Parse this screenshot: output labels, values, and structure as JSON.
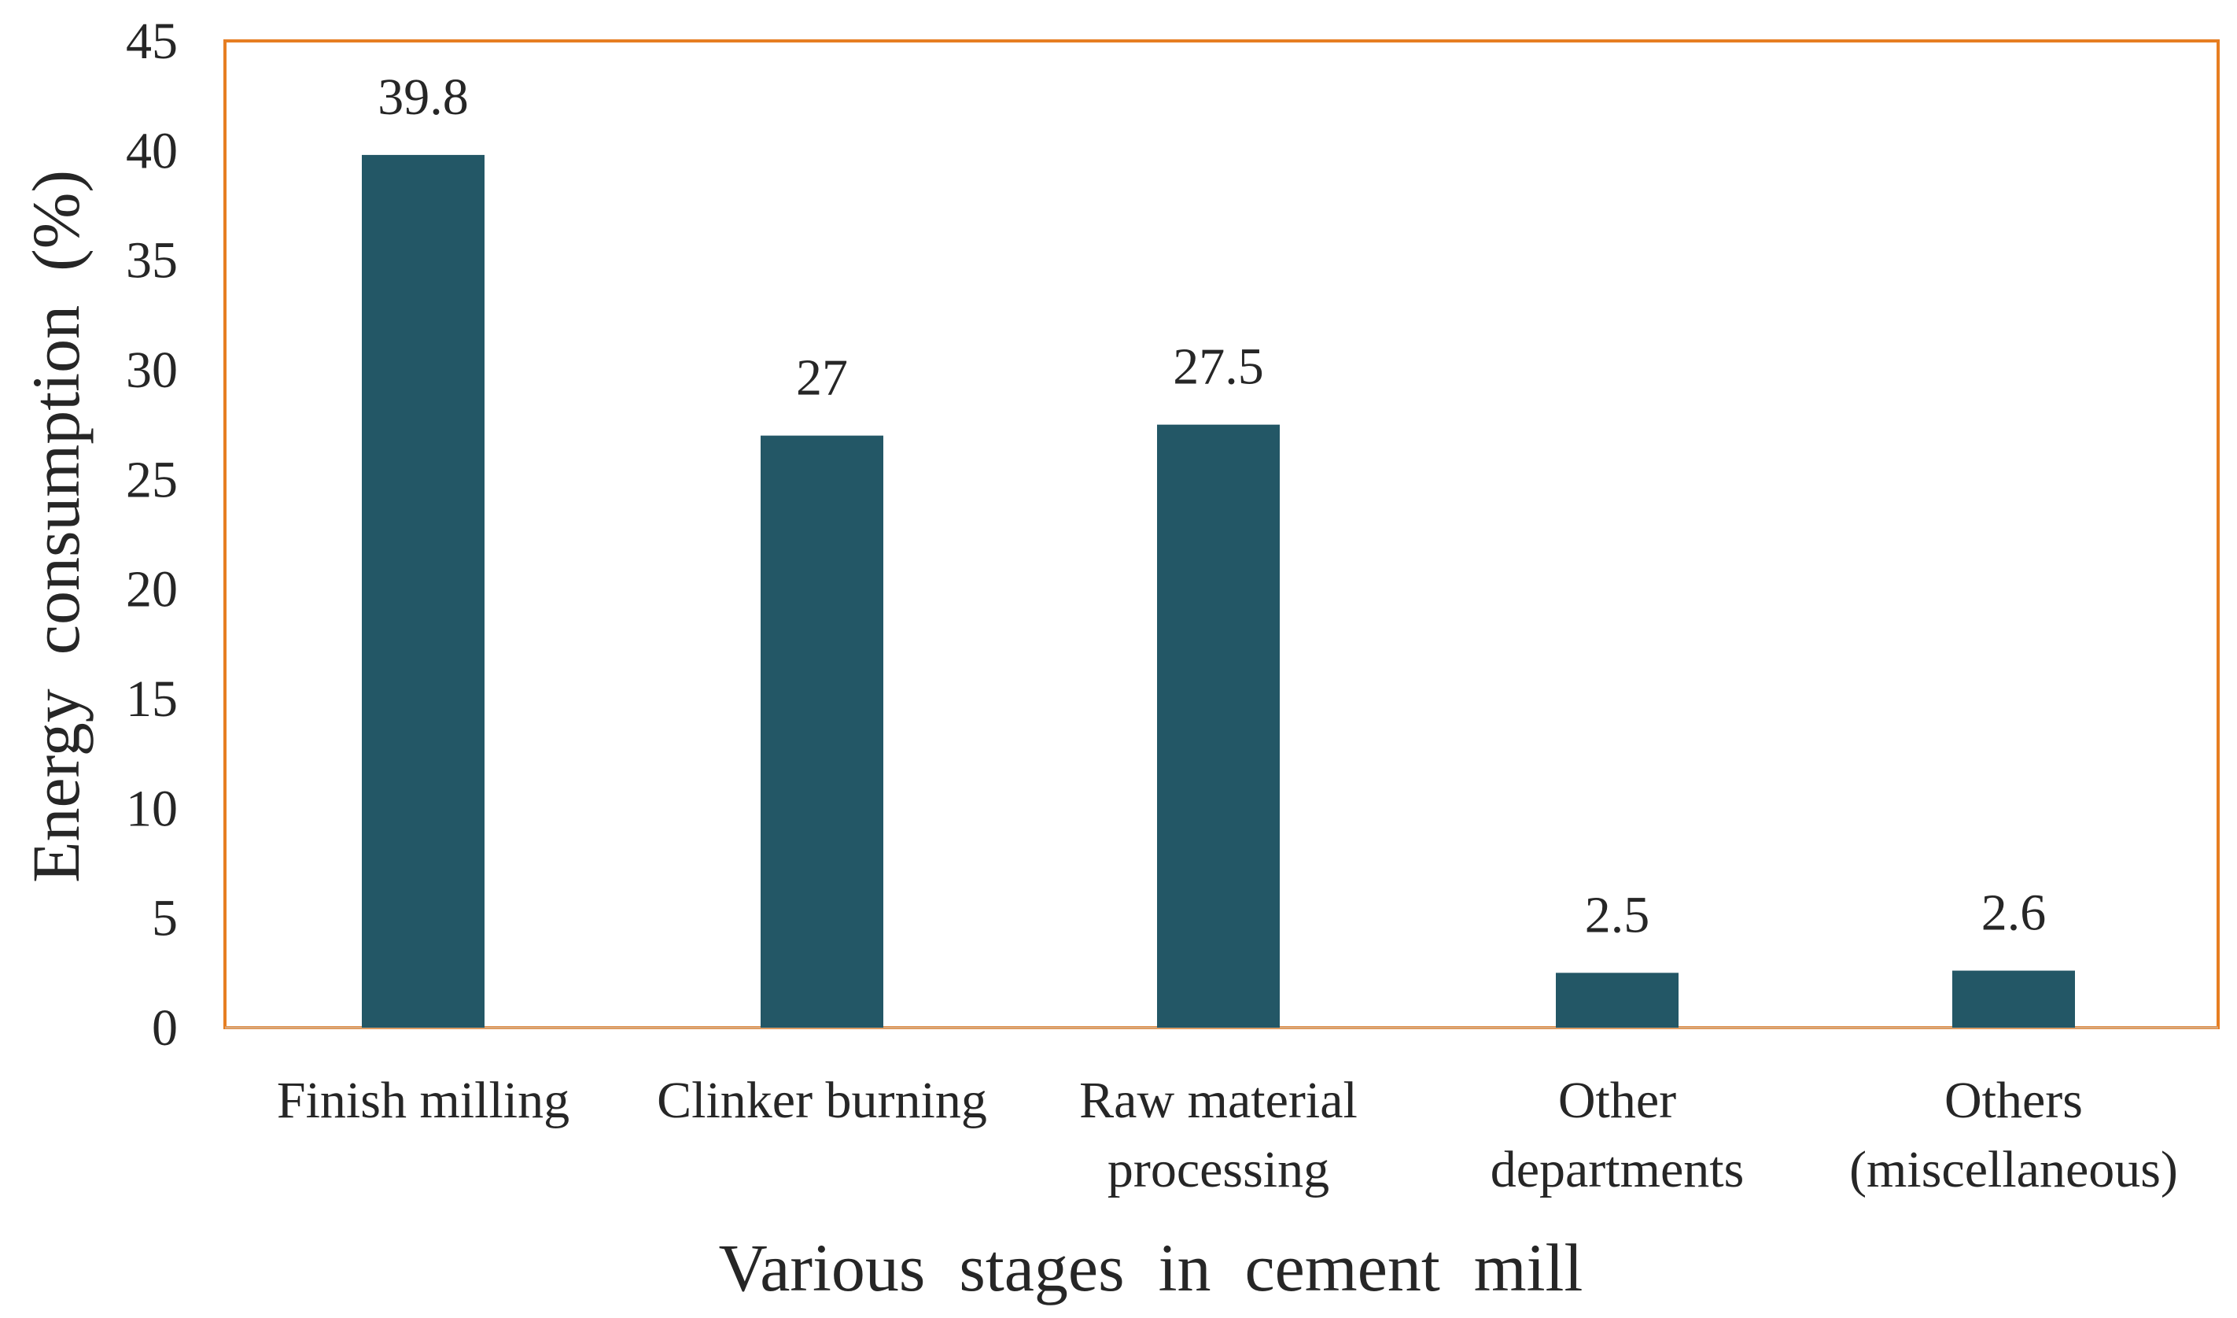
{
  "chart_data": {
    "type": "bar",
    "title": "",
    "xlabel": "Various  stages  in  cement  mill",
    "ylabel": "Energy  consumption  (%)",
    "categories": [
      [
        "Finish milling"
      ],
      [
        "Clinker burning"
      ],
      [
        "Raw material",
        "processing"
      ],
      [
        "Other",
        "departments"
      ],
      [
        "Others",
        "(miscellaneous)"
      ]
    ],
    "values": [
      39.8,
      27,
      27.5,
      2.5,
      2.6
    ],
    "data_labels": [
      "39.8",
      "27",
      "27.5",
      "2.5",
      "2.6"
    ],
    "ylim": [
      0,
      45
    ],
    "yticks": [
      0,
      5,
      10,
      15,
      20,
      25,
      30,
      35,
      40,
      45
    ],
    "grid": false,
    "legend": "none",
    "colors": {
      "bar": "#235766",
      "plot_border": "#E67E22",
      "text": "#262626"
    }
  }
}
